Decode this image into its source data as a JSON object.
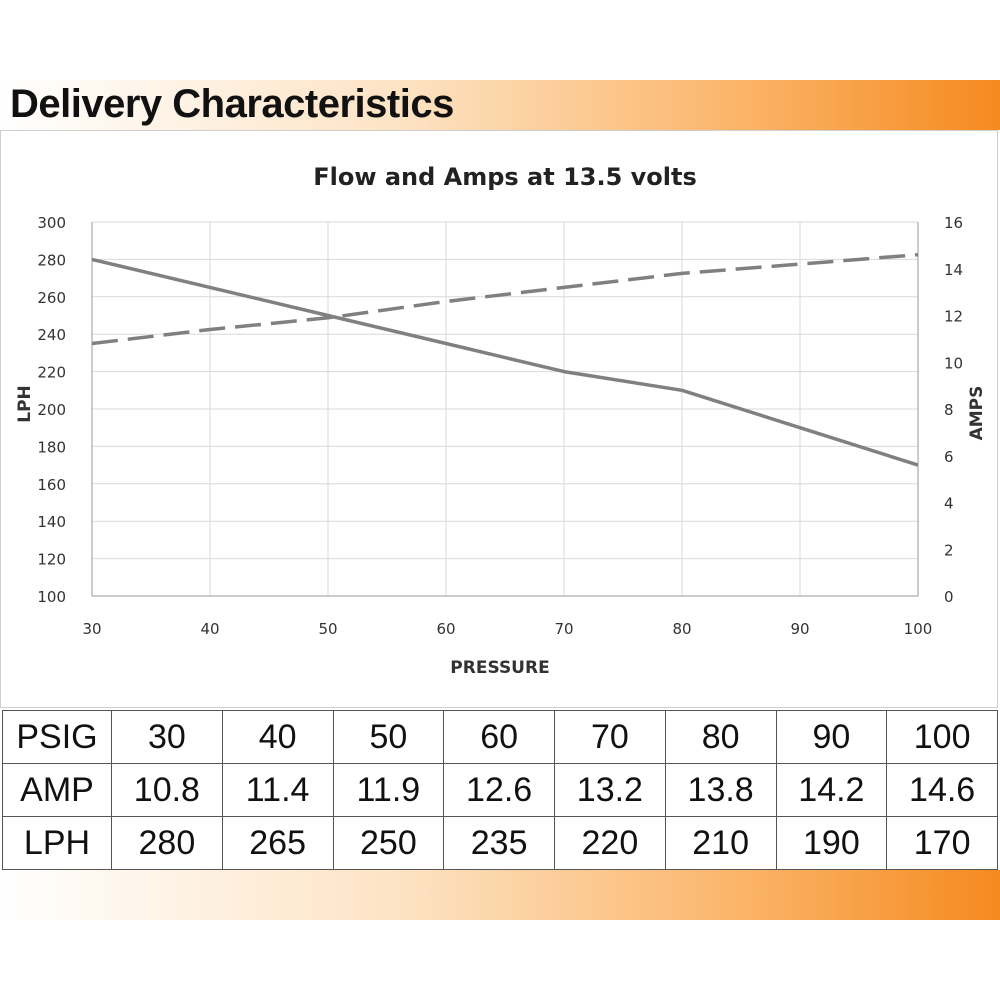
{
  "page": {
    "heading": "Delivery Characteristics",
    "colors": {
      "accent_orange": "#f58a1f",
      "line_gray": "#808080",
      "grid_gray": "#d9d9d9"
    }
  },
  "chart_data": {
    "type": "line",
    "title": "Flow and Amps at 13.5 volts",
    "xlabel": "PRESSURE",
    "ylabel": "LPH",
    "y2label": "AMPS",
    "xlim": [
      30,
      100
    ],
    "ylim": [
      100,
      300
    ],
    "y2lim": [
      0,
      16
    ],
    "x_ticks": [
      30,
      40,
      50,
      60,
      70,
      80,
      90,
      100
    ],
    "y_ticks": [
      100,
      120,
      140,
      160,
      180,
      200,
      220,
      240,
      260,
      280,
      300
    ],
    "y2_ticks": [
      0,
      2,
      4,
      6,
      8,
      10,
      12,
      14,
      16
    ],
    "grid": true,
    "series": [
      {
        "axis": "left",
        "style": "solid",
        "x": [
          30,
          40,
          50,
          60,
          70,
          80,
          90,
          100
        ],
        "values": [
          280,
          265,
          250,
          235,
          220,
          210,
          190,
          170
        ]
      },
      {
        "axis": "right",
        "style": "dashed",
        "x": [
          30,
          40,
          50,
          60,
          70,
          80,
          90,
          100
        ],
        "values": [
          10.8,
          11.4,
          11.9,
          12.6,
          13.2,
          13.8,
          14.2,
          14.6
        ]
      }
    ]
  },
  "table": {
    "rows": [
      {
        "label": "PSIG",
        "cells": [
          "30",
          "40",
          "50",
          "60",
          "70",
          "80",
          "90",
          "100"
        ]
      },
      {
        "label": "AMP",
        "cells": [
          "10.8",
          "11.4",
          "11.9",
          "12.6",
          "13.2",
          "13.8",
          "14.2",
          "14.6"
        ]
      },
      {
        "label": "LPH",
        "cells": [
          "280",
          "265",
          "250",
          "235",
          "220",
          "210",
          "190",
          "170"
        ]
      }
    ]
  }
}
